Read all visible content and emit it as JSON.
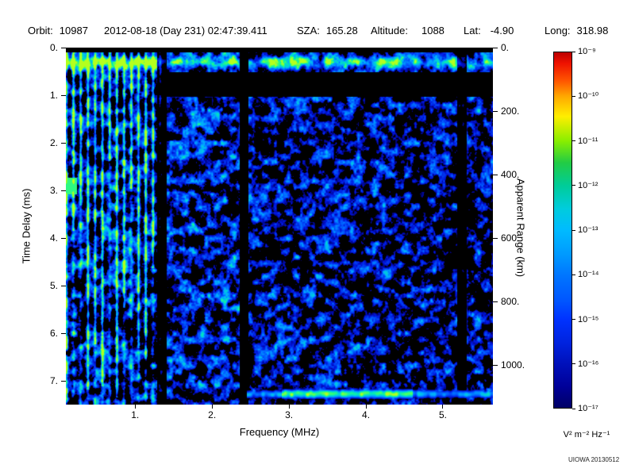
{
  "header": {
    "orbit_label": "Orbit:",
    "orbit_value": "10987",
    "datetime": "2012-08-18 (Day 231) 02:47:39.411",
    "sza_label": "SZA:",
    "sza_value": "165.28",
    "altitude_label": "Altitude:",
    "altitude_value": "1088",
    "lat_label": "Lat:",
    "lat_value": "-4.90",
    "long_label": "Long:",
    "long_value": "318.98"
  },
  "chart_data": {
    "type": "heatmap",
    "description": "Radar-sounder ionogram spectrogram: received spectral density versus frequency and time delay. Blue noise speckle on black; bright vertical electron-plasma-harmonic stripes below ~1.35 MHz; bright horizontal band near zero delay; dark RFI gap near 2.4 MHz; bright green surface-reflection band near 7.3 ms between ~2.5 and 5.5 MHz.",
    "xlabel": "Frequency (MHz)",
    "x_range": [
      0.1,
      5.65
    ],
    "x_ticks": [
      1,
      2,
      3,
      4,
      5
    ],
    "x_tick_labels": [
      "1.",
      "2.",
      "3.",
      "4.",
      "5."
    ],
    "ylabel_left": "Time Delay (ms)",
    "y_range": [
      0,
      7.5
    ],
    "y_ticks": [
      0,
      1,
      2,
      3,
      4,
      5,
      6,
      7
    ],
    "y_tick_labels": [
      "0.",
      "1.",
      "2.",
      "3.",
      "4.",
      "5.",
      "6.",
      "7."
    ],
    "ylabel_right": "Apparent Range (km)",
    "km_per_ms": 150,
    "right_ticks_km": [
      0,
      200,
      400,
      600,
      800,
      1000
    ],
    "right_tick_labels": [
      "0.",
      "200.",
      "400.",
      "600.",
      "800.",
      "1000."
    ],
    "colorbar": {
      "title": "V² m⁻² Hz⁻¹",
      "scale": "log",
      "range_top": "1e-9",
      "range_bottom": "1e-17",
      "tick_labels": [
        "10⁻⁹",
        "10⁻¹⁰",
        "10⁻¹¹",
        "10⁻¹²",
        "10⁻¹³",
        "10⁻¹⁴",
        "10⁻¹⁵",
        "10⁻¹⁶",
        "10⁻¹⁷"
      ],
      "gradient": [
        {
          "pos": 0.0,
          "color": "#bb0000"
        },
        {
          "pos": 0.03,
          "color": "#ee1100"
        },
        {
          "pos": 0.08,
          "color": "#ff5500"
        },
        {
          "pos": 0.125,
          "color": "#ffaa00"
        },
        {
          "pos": 0.18,
          "color": "#ffee00"
        },
        {
          "pos": 0.25,
          "color": "#88ee00"
        },
        {
          "pos": 0.31,
          "color": "#22cc44"
        },
        {
          "pos": 0.375,
          "color": "#00cc99"
        },
        {
          "pos": 0.44,
          "color": "#00ccdd"
        },
        {
          "pos": 0.5,
          "color": "#00bbff"
        },
        {
          "pos": 0.57,
          "color": "#0099ff"
        },
        {
          "pos": 0.625,
          "color": "#0077ff"
        },
        {
          "pos": 0.7,
          "color": "#0055ff"
        },
        {
          "pos": 0.75,
          "color": "#0033ff"
        },
        {
          "pos": 0.82,
          "color": "#0022dd"
        },
        {
          "pos": 0.875,
          "color": "#0011bb"
        },
        {
          "pos": 0.94,
          "color": "#000099"
        },
        {
          "pos": 1.0,
          "color": "#000066"
        }
      ]
    },
    "features": {
      "background": "#000000",
      "noise_seed": 20130512,
      "stripe_start_mhz": 0.1,
      "stripe_spacing_mhz": 0.094,
      "stripe_cutoff_mhz": 1.35,
      "rfi_gap_mhz": [
        2.35,
        2.47
      ],
      "secondary_gap_mhz": [
        1.28,
        1.4
      ],
      "right_gap_mhz": [
        5.18,
        5.3
      ],
      "top_band_ms": [
        0.1,
        0.55
      ],
      "dark_band_ms": [
        0.5,
        1.02
      ],
      "surface_band": {
        "t_ms": [
          7.08,
          7.46
        ],
        "f_mhz": [
          2.45,
          5.65
        ],
        "bright_f_mhz": [
          2.9,
          4.6
        ]
      },
      "left_edge_blob_ms": 2.9,
      "value_colormap": [
        [
          0.0,
          [
            0,
            0,
            100
          ]
        ],
        [
          0.15,
          [
            0,
            20,
            220
          ]
        ],
        [
          0.35,
          [
            0,
            90,
            255
          ]
        ],
        [
          0.55,
          [
            0,
            170,
            255
          ]
        ],
        [
          0.72,
          [
            0,
            230,
            190
          ]
        ],
        [
          0.85,
          [
            60,
            255,
            110
          ]
        ],
        [
          1.0,
          [
            180,
            255,
            30
          ]
        ]
      ]
    }
  },
  "watermark": "UIOWA 20130512"
}
